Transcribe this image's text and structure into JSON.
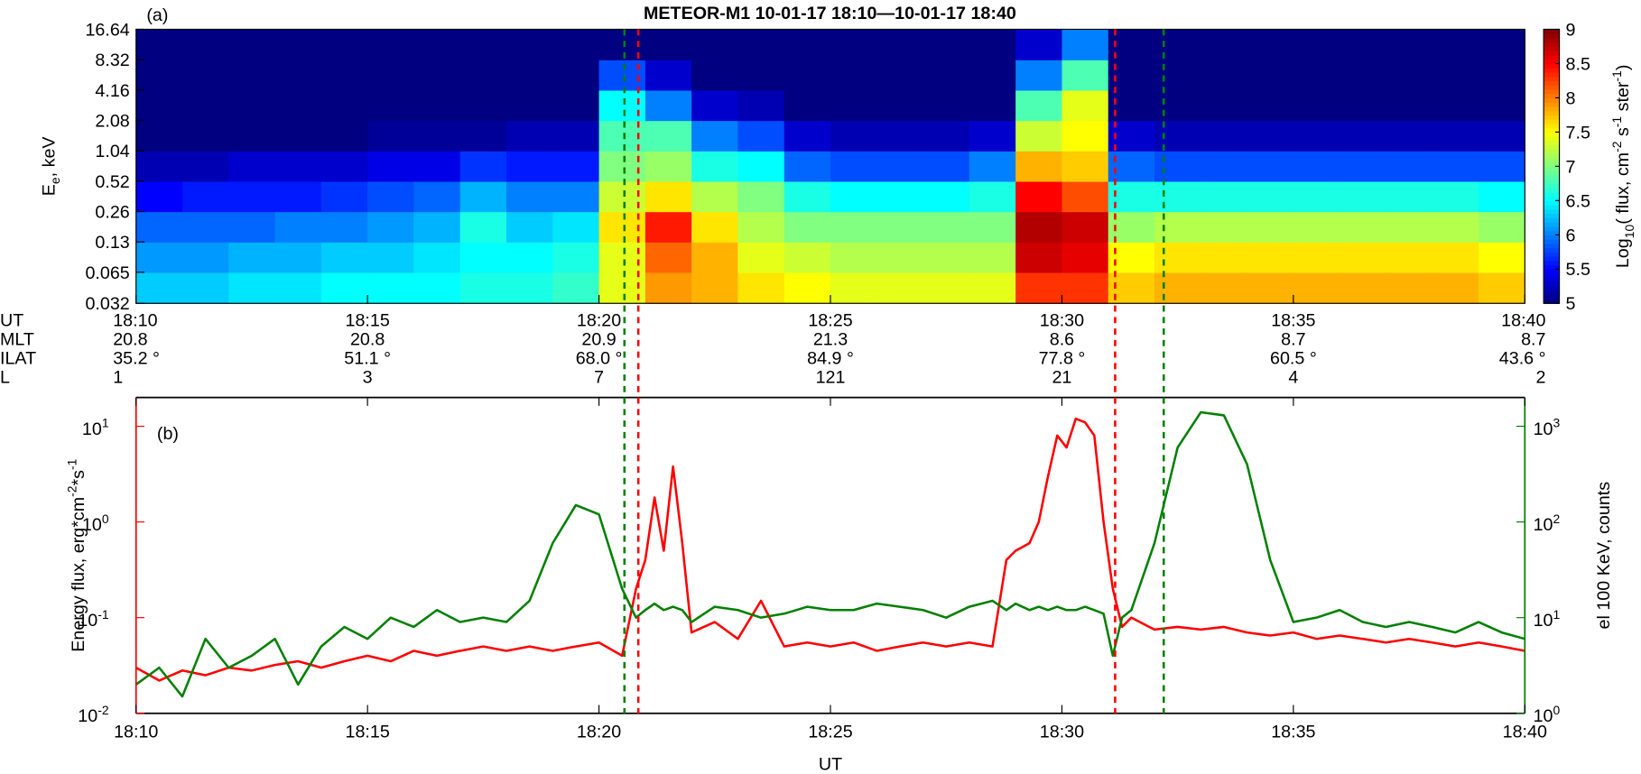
{
  "chart_data": [
    {
      "type": "heatmap",
      "title": "METEOR-M1  10-01-17 18:10—10-01-17 18:40",
      "annotation": "(a)",
      "ylabel": [
        {
          "t": "E"
        },
        {
          "t": "e",
          "s": "sub"
        },
        {
          "t": ", keV"
        }
      ],
      "ylim": [
        0.032,
        16.64
      ],
      "log_y": true,
      "yticks": [
        0.032,
        0.065,
        0.13,
        0.26,
        0.52,
        1.04,
        2.08,
        4.16,
        8.32,
        16.64
      ],
      "xlim": [
        0,
        30
      ],
      "xticks": [
        0,
        5,
        10,
        15,
        20,
        25,
        30
      ],
      "xbins": [
        0,
        1,
        2,
        3,
        4,
        5,
        6,
        7,
        8,
        9,
        10,
        11,
        12,
        13,
        14,
        15,
        16,
        17,
        18,
        19,
        20,
        21,
        22,
        23,
        24,
        25,
        26,
        27,
        28,
        29,
        30
      ],
      "colormap": "jet",
      "zlim": [
        5,
        9
      ],
      "zticks": [
        5,
        5.5,
        6,
        6.5,
        7,
        7.5,
        8,
        8.5,
        9
      ],
      "colorbar_label": [
        {
          "t": "Log"
        },
        {
          "t": "10",
          "s": "sub"
        },
        {
          "t": "( flux, cm"
        },
        {
          "t": "-2",
          "s": "sup"
        },
        {
          "t": " s"
        },
        {
          "t": "-1",
          "s": "sup"
        },
        {
          "t": " ster"
        },
        {
          "t": "-1",
          "s": "sup"
        },
        {
          "t": ")"
        }
      ],
      "z": [
        [
          6.3,
          6.1,
          5.9,
          5.5,
          5.2,
          5,
          5,
          5,
          5
        ],
        [
          6.3,
          6.1,
          5.9,
          5.6,
          5.2,
          5,
          5,
          5,
          5
        ],
        [
          6.4,
          6.2,
          5.9,
          5.6,
          5.3,
          5,
          5,
          5,
          5
        ],
        [
          6.4,
          6.2,
          6,
          5.6,
          5.3,
          5,
          5,
          5,
          5
        ],
        [
          6.5,
          6.3,
          6,
          5.7,
          5.3,
          5,
          5,
          5,
          5
        ],
        [
          6.5,
          6.3,
          6.1,
          5.8,
          5.4,
          5.1,
          5,
          5,
          5
        ],
        [
          6.5,
          6.4,
          6.2,
          5.9,
          5.4,
          5.1,
          5,
          5,
          5
        ],
        [
          6.6,
          6.5,
          6.6,
          6.2,
          5.7,
          5.1,
          5,
          5,
          5
        ],
        [
          6.6,
          6.5,
          6.3,
          6,
          5.6,
          5.2,
          5,
          5,
          5
        ],
        [
          6.7,
          6.6,
          6.4,
          6,
          5.6,
          5.2,
          5,
          5,
          5
        ],
        [
          7.4,
          7.4,
          7.6,
          7.3,
          7,
          6.8,
          6.5,
          5.8,
          5
        ],
        [
          7.9,
          8.1,
          8.4,
          7.6,
          7.1,
          6.8,
          6,
          5.3,
          5
        ],
        [
          7.8,
          7.8,
          7.6,
          7.2,
          6.6,
          6,
          5.3,
          5,
          5
        ],
        [
          7.6,
          7.4,
          7.2,
          7,
          6.5,
          5.8,
          5.2,
          5,
          5
        ],
        [
          7.5,
          7.3,
          7,
          6.6,
          5.9,
          5.3,
          5,
          5,
          5
        ],
        [
          7.4,
          7.2,
          7,
          6.5,
          5.8,
          5.2,
          5,
          5,
          5
        ],
        [
          7.4,
          7.2,
          7,
          6.5,
          5.8,
          5.2,
          5,
          5,
          5
        ],
        [
          7.4,
          7.2,
          7,
          6.5,
          5.8,
          5.2,
          5,
          5,
          5
        ],
        [
          7.4,
          7.2,
          7,
          6.6,
          6,
          5.3,
          5,
          5,
          5
        ],
        [
          8.3,
          8.7,
          8.8,
          8.5,
          7.8,
          7.3,
          6.8,
          6,
          5.3
        ],
        [
          8.3,
          8.6,
          8.7,
          8.2,
          7.7,
          7.5,
          7.4,
          6.8,
          6
        ],
        [
          7.7,
          7.5,
          7.1,
          6.6,
          5.9,
          5.3,
          5,
          5,
          5
        ],
        [
          7.8,
          7.6,
          7.2,
          6.6,
          5.8,
          5.2,
          5,
          5,
          5
        ],
        [
          7.8,
          7.6,
          7.2,
          6.6,
          5.8,
          5.2,
          5,
          5,
          5
        ],
        [
          7.8,
          7.6,
          7.2,
          6.6,
          5.8,
          5.2,
          5,
          5,
          5
        ],
        [
          7.8,
          7.6,
          7.2,
          6.6,
          5.8,
          5.2,
          5,
          5,
          5
        ],
        [
          7.8,
          7.6,
          7.2,
          6.6,
          5.8,
          5.2,
          5,
          5,
          5
        ],
        [
          7.8,
          7.6,
          7.2,
          6.6,
          5.8,
          5.2,
          5,
          5,
          5
        ],
        [
          7.8,
          7.6,
          7.2,
          6.6,
          5.8,
          5.2,
          5,
          5,
          5
        ],
        [
          7.7,
          7.5,
          7.1,
          6.5,
          5.8,
          5.2,
          5,
          5,
          5
        ]
      ],
      "ephemeris": [
        {
          "label": "UT",
          "values": [
            "18:10",
            "18:15",
            "18:20",
            "18:25",
            "18:30",
            "18:35",
            "18:40"
          ]
        },
        {
          "label": "MLT",
          "values": [
            20.8,
            20.8,
            20.9,
            21.3,
            8.6,
            8.7,
            8.7
          ]
        },
        {
          "label": "ILAT",
          "values": [
            "35.2 °",
            "51.1 °",
            "68.0 °",
            "84.9 °",
            "77.8 °",
            "60.5 °",
            "43.6 °"
          ]
        },
        {
          "label": "L",
          "values": [
            1,
            3,
            7,
            121,
            21,
            4,
            2
          ]
        }
      ],
      "vlines": [
        {
          "x": 10.55,
          "color": "#008000"
        },
        {
          "x": 10.85,
          "color": "#ff0000"
        },
        {
          "x": 21.15,
          "color": "#ff0000"
        },
        {
          "x": 22.2,
          "color": "#008000"
        }
      ]
    },
    {
      "type": "line",
      "annotation": "(b)",
      "xlabel": "UT",
      "ylabel": [
        {
          "t": "Energy flux, erg*cm"
        },
        {
          "t": "-2",
          "s": "sup"
        },
        {
          "t": "*s"
        },
        {
          "t": "-1",
          "s": "sup"
        }
      ],
      "y2label": "el 100 KeV, counts",
      "xlim": [
        0,
        30
      ],
      "xticks": [
        {
          "value": 0,
          "label": "18:10"
        },
        {
          "value": 5,
          "label": "18:15"
        },
        {
          "value": 10,
          "label": "18:20"
        },
        {
          "value": 15,
          "label": "18:25"
        },
        {
          "value": 20,
          "label": "18:30"
        },
        {
          "value": 25,
          "label": "18:35"
        },
        {
          "value": 30,
          "label": "18:40"
        }
      ],
      "log_y": true,
      "ylim": [
        0.01,
        20
      ],
      "yticks": [
        {
          "value": 0.01,
          "label": [
            {
              "t": "10"
            },
            {
              "t": "-2",
              "s": "sup"
            }
          ]
        },
        {
          "value": 0.1,
          "label": [
            {
              "t": "10"
            },
            {
              "t": "-1",
              "s": "sup"
            }
          ]
        },
        {
          "value": 1,
          "label": [
            {
              "t": "10"
            },
            {
              "t": "0",
              "s": "sup"
            }
          ]
        },
        {
          "value": 10,
          "label": [
            {
              "t": "10"
            },
            {
              "t": "1",
              "s": "sup"
            }
          ]
        }
      ],
      "log_y2": true,
      "y2lim": [
        1,
        2000
      ],
      "y2ticks": [
        {
          "value": 1,
          "label": [
            {
              "t": "10"
            },
            {
              "t": "0",
              "s": "sup"
            }
          ]
        },
        {
          "value": 10,
          "label": [
            {
              "t": "10"
            },
            {
              "t": "1",
              "s": "sup"
            }
          ]
        },
        {
          "value": 100,
          "label": [
            {
              "t": "10"
            },
            {
              "t": "2",
              "s": "sup"
            }
          ]
        },
        {
          "value": 1000,
          "label": [
            {
              "t": "10"
            },
            {
              "t": "3",
              "s": "sup"
            }
          ]
        }
      ],
      "x": [
        0,
        0.5,
        1,
        1.5,
        2,
        2.5,
        3,
        3.5,
        4,
        4.5,
        5,
        5.5,
        6,
        6.5,
        7,
        7.5,
        8,
        8.5,
        9,
        9.5,
        10,
        10.5,
        10.8,
        11,
        11.2,
        11.4,
        11.6,
        11.8,
        12,
        12.5,
        13,
        13.5,
        14,
        14.5,
        15,
        15.5,
        16,
        16.5,
        17,
        17.5,
        18,
        18.5,
        18.8,
        19,
        19.3,
        19.5,
        19.7,
        19.9,
        20.1,
        20.3,
        20.5,
        20.7,
        20.9,
        21.1,
        21.3,
        21.5,
        22,
        22.5,
        23,
        23.5,
        24,
        24.5,
        25,
        25.5,
        26,
        26.5,
        27,
        27.5,
        28,
        28.5,
        29,
        29.5,
        30
      ],
      "series": [
        {
          "color": "#ff0000",
          "axis": "y",
          "values": [
            0.03,
            0.022,
            0.028,
            0.025,
            0.03,
            0.028,
            0.032,
            0.035,
            0.03,
            0.035,
            0.04,
            0.035,
            0.045,
            0.04,
            0.045,
            0.05,
            0.045,
            0.05,
            0.045,
            0.05,
            0.055,
            0.04,
            0.2,
            0.4,
            1.8,
            0.5,
            3.8,
            0.6,
            0.07,
            0.09,
            0.06,
            0.15,
            0.05,
            0.055,
            0.05,
            0.055,
            0.045,
            0.05,
            0.055,
            0.05,
            0.055,
            0.05,
            0.4,
            0.5,
            0.6,
            1,
            3,
            8,
            6,
            12,
            11,
            8,
            1,
            0.2,
            0.08,
            0.1,
            0.075,
            0.08,
            0.075,
            0.08,
            0.07,
            0.065,
            0.07,
            0.06,
            0.065,
            0.06,
            0.055,
            0.06,
            0.055,
            0.05,
            0.055,
            0.05,
            0.045
          ]
        },
        {
          "color": "#008000",
          "axis": "y2",
          "values": [
            2,
            3,
            1.5,
            6,
            3,
            4,
            6,
            2,
            5,
            8,
            6,
            10,
            8,
            12,
            9,
            10,
            9,
            15,
            60,
            150,
            120,
            20,
            10,
            12,
            14,
            12,
            13,
            12,
            9,
            13,
            12,
            10,
            11,
            13,
            12,
            12,
            14,
            13,
            12,
            10,
            13,
            15,
            12,
            14,
            12,
            13,
            12,
            13,
            12,
            12,
            13,
            12,
            11,
            4,
            10,
            12,
            60,
            600,
            1400,
            1300,
            400,
            40,
            9,
            10,
            12,
            9,
            8,
            9,
            8,
            7,
            9,
            7,
            6
          ]
        }
      ]
    }
  ]
}
